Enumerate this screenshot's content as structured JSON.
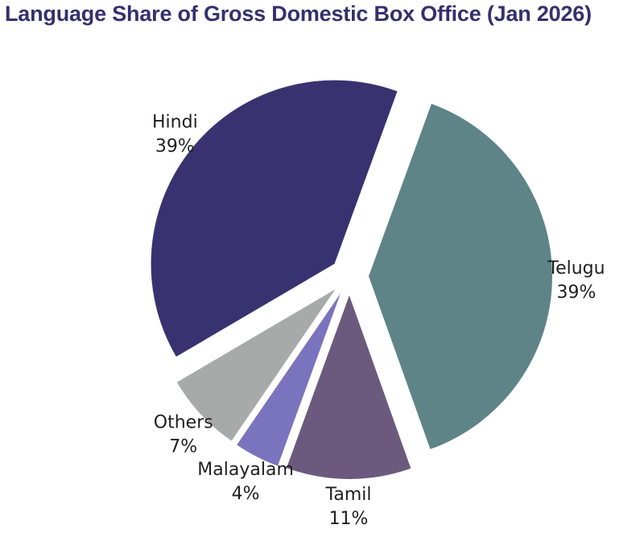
{
  "chart_data": {
    "type": "pie",
    "title": "Language Share of Gross Domestic Box Office (Jan 2026)",
    "slices": [
      {
        "label": "Telugu",
        "value": 39,
        "value_label": "39%",
        "color": "#5e8488"
      },
      {
        "label": "Tamil",
        "value": 11,
        "value_label": "11%",
        "color": "#6b5a7e"
      },
      {
        "label": "Malayalam",
        "value": 4,
        "value_label": "4%",
        "color": "#7a73bd"
      },
      {
        "label": "Others",
        "value": 7,
        "value_label": "7%",
        "color": "#a8aaa9"
      },
      {
        "label": "Hindi",
        "value": 39,
        "value_label": "39%",
        "color": "#383370"
      }
    ],
    "exploded": true,
    "labels_outside": true
  }
}
